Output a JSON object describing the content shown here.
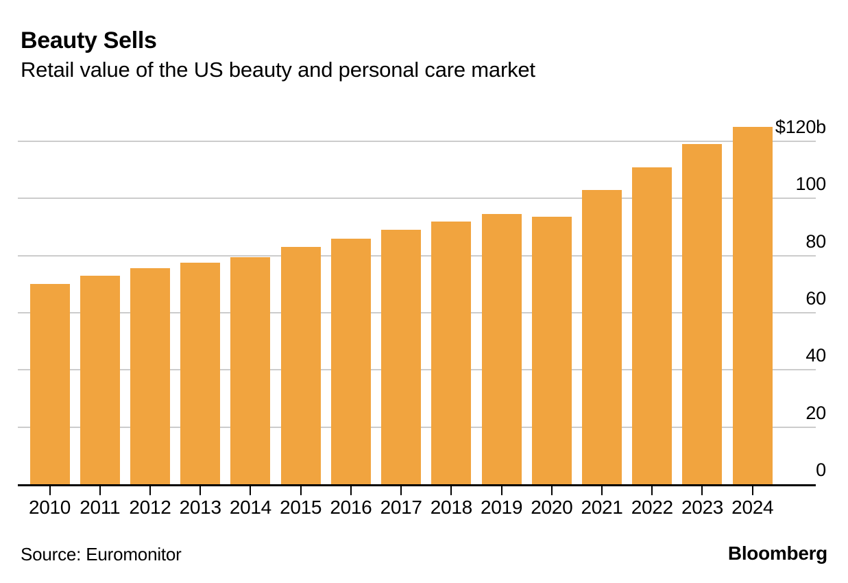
{
  "header": {
    "title": "Beauty Sells",
    "subtitle": "Retail value of the US beauty and personal care market"
  },
  "footer": {
    "source": "Source: Euromonitor",
    "brand": "Bloomberg"
  },
  "colors": {
    "bar": "#F1A43F",
    "gridline": "#CCCCCC",
    "axis": "#000000",
    "text": "#000000",
    "background": "#FFFFFF"
  },
  "chart_data": {
    "type": "bar",
    "title": "Beauty Sells",
    "subtitle": "Retail value of the US beauty and personal care market",
    "unit": "billion US dollars",
    "categories": [
      "2010",
      "2011",
      "2012",
      "2013",
      "2014",
      "2015",
      "2016",
      "2017",
      "2018",
      "2019",
      "2020",
      "2021",
      "2022",
      "2023",
      "2024"
    ],
    "values": [
      70,
      73,
      75.5,
      77.5,
      79.5,
      83,
      86,
      89,
      92,
      94.5,
      93.5,
      103,
      111,
      119,
      125
    ],
    "xlabel": "",
    "ylabel": "",
    "ylim": [
      0,
      130
    ],
    "yticks": [
      {
        "value": 0,
        "label": "0"
      },
      {
        "value": 20,
        "label": "20"
      },
      {
        "value": 40,
        "label": "40"
      },
      {
        "value": 60,
        "label": "60"
      },
      {
        "value": 80,
        "label": "80"
      },
      {
        "value": 100,
        "label": "100"
      },
      {
        "value": 120,
        "label": "$120b"
      }
    ],
    "grid": "horizontal",
    "y_tick_label_position": "right",
    "legend": "none",
    "source": "Euromonitor"
  }
}
